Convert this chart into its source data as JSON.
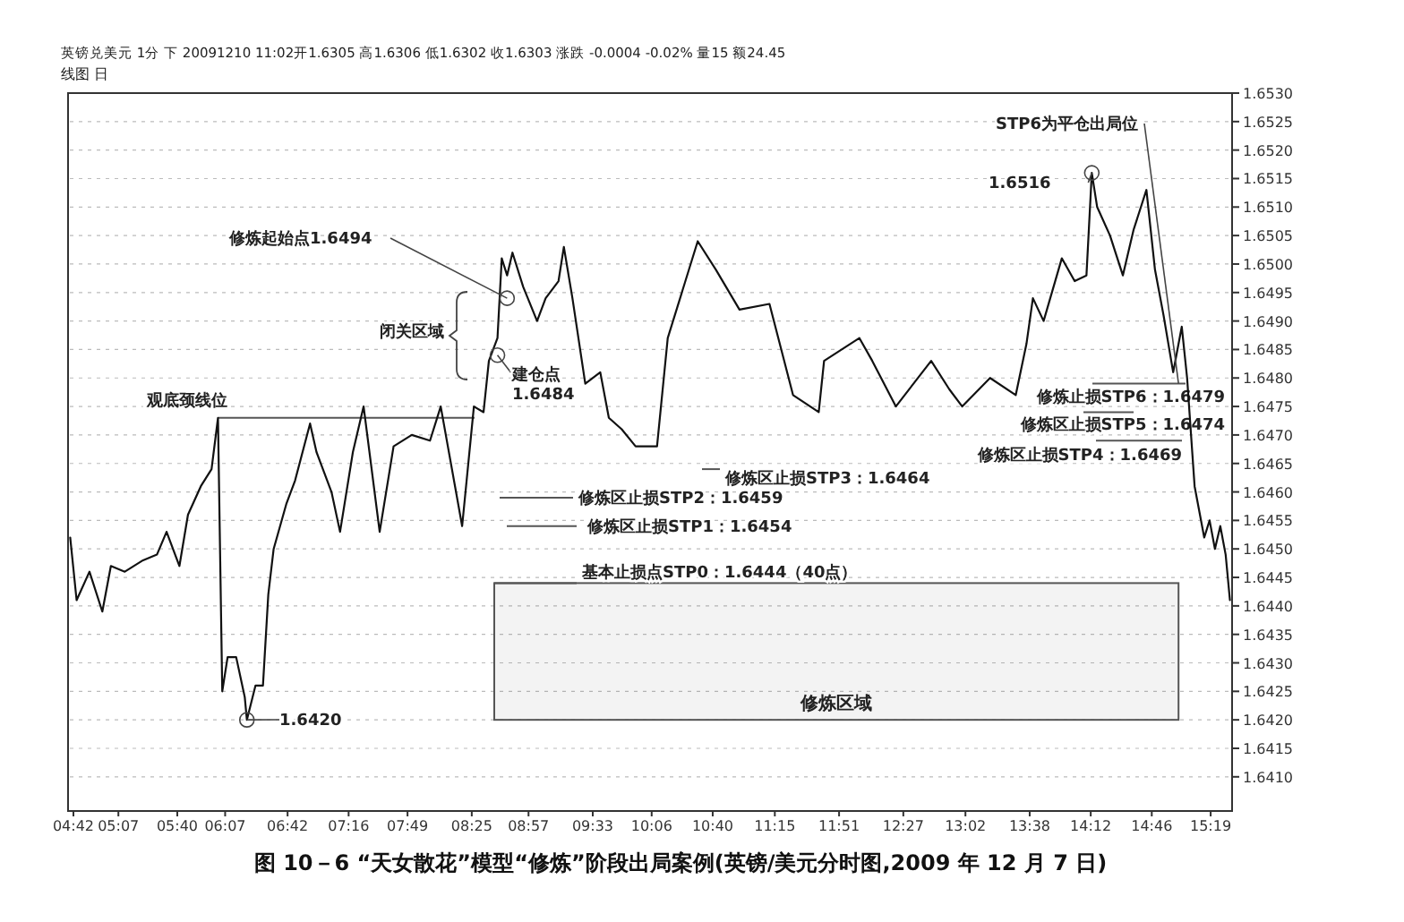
{
  "chart_data": {
    "type": "line",
    "title": "图 10－6 “天女散花”模型“修炼”阶段出局案例(英镑/美元分时图,2009 年 12 月 7 日)",
    "subtitle": "英镑兑美元 1分 下 20091210 11:02开1.6305 高1.6306 低1.6302 收1.6303 涨跌 -0.0004 -0.02% 量15 额24.45",
    "x": [
      4.67,
      4.73,
      4.85,
      4.97,
      5.05,
      5.18,
      5.35,
      5.48,
      5.57,
      5.69,
      5.77,
      5.89,
      5.99,
      6.05,
      6.09,
      6.14,
      6.22,
      6.3,
      6.32,
      6.4,
      6.47,
      6.52,
      6.57,
      6.69,
      6.77,
      6.91,
      6.97,
      7.11,
      7.19,
      7.31,
      7.41,
      7.56,
      7.69,
      7.86,
      8.03,
      8.13,
      8.33,
      8.44,
      8.53,
      8.58,
      8.66,
      8.7,
      8.75,
      8.8,
      8.9,
      9.03,
      9.11,
      9.23,
      9.28,
      9.36,
      9.48,
      9.62,
      9.7,
      9.82,
      9.95,
      10.15,
      10.25,
      10.53,
      10.7,
      10.92,
      11.2,
      11.42,
      11.66,
      11.71,
      12.04,
      12.16,
      12.38,
      12.71,
      12.88,
      13.0,
      13.26,
      13.5,
      13.6,
      13.66,
      13.76,
      13.93,
      14.05,
      14.16,
      14.21,
      14.26,
      14.38,
      14.5,
      14.6,
      14.72,
      14.8,
      14.88,
      14.97,
      15.05,
      15.1,
      15.17,
      15.26,
      15.31,
      15.36,
      15.41,
      15.46,
      15.5
    ],
    "series": [
      {
        "color": "#111111",
        "values": [
          1.6452,
          1.6441,
          1.6446,
          1.6439,
          1.6447,
          1.6446,
          1.6448,
          1.6449,
          1.6453,
          1.6447,
          1.6456,
          1.6461,
          1.6464,
          1.6473,
          1.6425,
          1.6431,
          1.6431,
          1.6424,
          1.642,
          1.6426,
          1.6426,
          1.6442,
          1.645,
          1.6458,
          1.6462,
          1.6472,
          1.6467,
          1.646,
          1.6453,
          1.6467,
          1.6475,
          1.6453,
          1.6468,
          1.647,
          1.6469,
          1.6475,
          1.6454,
          1.6475,
          1.6474,
          1.6483,
          1.6487,
          1.6501,
          1.6498,
          1.6502,
          1.6496,
          1.649,
          1.6494,
          1.6497,
          1.6503,
          1.6494,
          1.6479,
          1.6481,
          1.6473,
          1.6471,
          1.6468,
          1.6468,
          1.6487,
          1.6504,
          1.6499,
          1.6492,
          1.6493,
          1.6477,
          1.6474,
          1.6483,
          1.6487,
          1.6483,
          1.6475,
          1.6483,
          1.6478,
          1.6475,
          1.648,
          1.6477,
          1.6486,
          1.6494,
          1.649,
          1.6501,
          1.6497,
          1.6498,
          1.6516,
          1.651,
          1.6505,
          1.6498,
          1.6506,
          1.6513,
          1.6499,
          1.6491,
          1.6481,
          1.6489,
          1.648,
          1.6461,
          1.6452,
          1.6455,
          1.645,
          1.6454,
          1.6449,
          1.6441
        ]
      }
    ],
    "xlim": [
      4.65,
      15.52
    ],
    "xticks": [
      {
        "value": 4.7,
        "label": "04:42"
      },
      {
        "value": 5.12,
        "label": "05:07"
      },
      {
        "value": 5.67,
        "label": "05:40"
      },
      {
        "value": 6.117,
        "label": "06:07"
      },
      {
        "value": 6.7,
        "label": "06:42"
      },
      {
        "value": 7.27,
        "label": "07:16"
      },
      {
        "value": 7.82,
        "label": "07:49"
      },
      {
        "value": 8.42,
        "label": "08:25"
      },
      {
        "value": 8.95,
        "label": "08:57"
      },
      {
        "value": 9.55,
        "label": "09:33"
      },
      {
        "value": 10.1,
        "label": "10:06"
      },
      {
        "value": 10.67,
        "label": "10:40"
      },
      {
        "value": 11.25,
        "label": "11:15"
      },
      {
        "value": 11.85,
        "label": "11:51"
      },
      {
        "value": 12.45,
        "label": "12:27"
      },
      {
        "value": 13.03,
        "label": "13:02"
      },
      {
        "value": 13.63,
        "label": "13:38"
      },
      {
        "value": 14.2,
        "label": "14:12"
      },
      {
        "value": 14.77,
        "label": "14:46"
      },
      {
        "value": 15.32,
        "label": "15:19"
      }
    ],
    "ylim": [
      1.6404,
      1.653
    ],
    "yticks": [
      {
        "value": 1.641,
        "label": "1.6410"
      },
      {
        "value": 1.6415,
        "label": "1.6415"
      },
      {
        "value": 1.642,
        "label": "1.6420"
      },
      {
        "value": 1.6425,
        "label": "1.6425"
      },
      {
        "value": 1.643,
        "label": "1.6430"
      },
      {
        "value": 1.6435,
        "label": "1.6435"
      },
      {
        "value": 1.644,
        "label": "1.6440"
      },
      {
        "value": 1.6445,
        "label": "1.6445"
      },
      {
        "value": 1.645,
        "label": "1.6450"
      },
      {
        "value": 1.6455,
        "label": "1.6455"
      },
      {
        "value": 1.646,
        "label": "1.6460"
      },
      {
        "value": 1.6465,
        "label": "1.6465"
      },
      {
        "value": 1.647,
        "label": "1.6470"
      },
      {
        "value": 1.6475,
        "label": "1.6475"
      },
      {
        "value": 1.648,
        "label": "1.6480"
      },
      {
        "value": 1.6485,
        "label": "1.6485"
      },
      {
        "value": 1.649,
        "label": "1.6490"
      },
      {
        "value": 1.6495,
        "label": "1.6495"
      },
      {
        "value": 1.65,
        "label": "1.6500"
      },
      {
        "value": 1.6505,
        "label": "1.6505"
      },
      {
        "value": 1.651,
        "label": "1.6510"
      },
      {
        "value": 1.6515,
        "label": "1.6515"
      },
      {
        "value": 1.652,
        "label": "1.6520"
      },
      {
        "value": 1.6525,
        "label": "1.6525"
      },
      {
        "value": 1.653,
        "label": "1.6530"
      }
    ],
    "grid": "y",
    "ref_lines": [
      {
        "axis": "y",
        "value": 1.6473,
        "label": "观底颈线位",
        "color": "#555555"
      },
      {
        "axis": "y",
        "value": 1.6444,
        "label": "基本止损点STP0：1.6444（40点）",
        "color": "#555555"
      },
      {
        "axis": "y",
        "value": 1.6454,
        "label": "修炼区止损STP1：1.6454",
        "color": "#555555"
      },
      {
        "axis": "y",
        "value": 1.6459,
        "label": "修炼区止损STP2：1.6459",
        "color": "#555555"
      },
      {
        "axis": "y",
        "value": 1.6464,
        "label": "修炼区止损STP3：1.6464",
        "color": "#555555"
      },
      {
        "axis": "y",
        "value": 1.6469,
        "label": "修炼区止损STP4：1.6469",
        "color": "#555555"
      },
      {
        "axis": "y",
        "value": 1.6474,
        "label": "修炼区止损STP5：1.6474",
        "color": "#555555"
      },
      {
        "axis": "y",
        "value": 1.6479,
        "label": "修炼止损STP6：1.6479",
        "color": "#555555"
      }
    ],
    "bands": [
      {
        "axis": "x",
        "from": 8.63,
        "to": 15.02,
        "label": "修炼区域",
        "color": "#555555"
      }
    ],
    "annotations": [
      {
        "text": "修炼起始点1.6494",
        "x": 8.75,
        "y": 1.6494
      },
      {
        "text": "建仓点\n1.6484",
        "x": 8.66,
        "y": 1.6484
      },
      {
        "text": "1.6420",
        "x": 6.32,
        "y": 1.642
      },
      {
        "text": "1.6516",
        "x": 14.21,
        "y": 1.6516
      },
      "闭关区域",
      {
        "text": "STP6为平仓出局位",
        "x": 15.02,
        "y": 1.6479
      },
      "线图 日"
    ]
  }
}
